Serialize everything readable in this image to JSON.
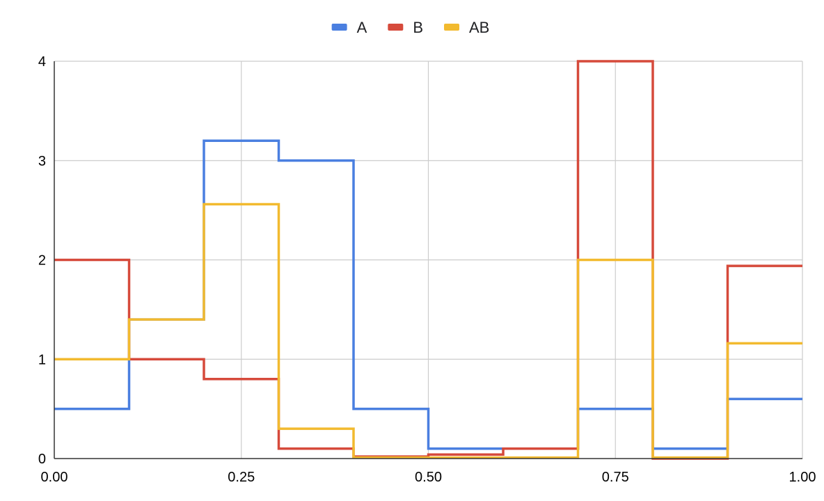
{
  "chart_data": {
    "type": "line",
    "step": true,
    "title": "",
    "xlabel": "",
    "ylabel": "",
    "xlim": [
      0,
      1
    ],
    "ylim": [
      0,
      4
    ],
    "x_ticks": [
      "0.00",
      "0.25",
      "0.50",
      "0.75",
      "1.00"
    ],
    "y_ticks": [
      "0",
      "1",
      "2",
      "3",
      "4"
    ],
    "grid": true,
    "legend_position": "top-center",
    "x": [
      0.0,
      0.1,
      0.2,
      0.3,
      0.4,
      0.5,
      0.6,
      0.7,
      0.8,
      0.9,
      1.0
    ],
    "series": [
      {
        "name": "A",
        "color": "#4a7fe0",
        "values": [
          0.5,
          1.4,
          3.2,
          3.0,
          0.5,
          0.1,
          0.1,
          0.5,
          0.1,
          0.6,
          0.6
        ]
      },
      {
        "name": "B",
        "color": "#d64a3b",
        "values": [
          2.0,
          1.0,
          0.8,
          0.1,
          0.02,
          0.04,
          0.1,
          4.0,
          0.0,
          1.94,
          1.94
        ]
      },
      {
        "name": "AB",
        "color": "#f2ba2f",
        "values": [
          1.0,
          1.4,
          2.56,
          0.3,
          0.01,
          0.01,
          0.01,
          2.0,
          0.01,
          1.16,
          1.16
        ]
      }
    ]
  }
}
